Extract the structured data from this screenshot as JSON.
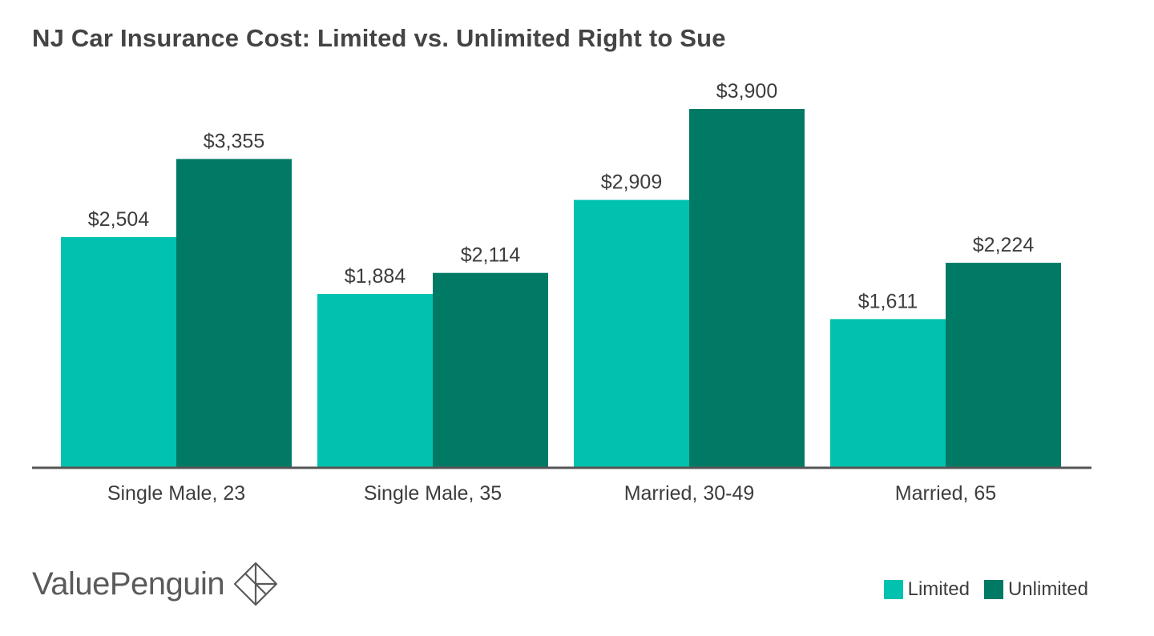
{
  "chart_data": {
    "type": "bar",
    "title": "NJ Car Insurance Cost: Limited vs. Unlimited Right to Sue",
    "xlabel": "",
    "ylabel": "",
    "categories": [
      "Single Male, 23",
      "Single Male, 35",
      "Married, 30-49",
      "Married, 65"
    ],
    "series": [
      {
        "name": "Limited",
        "color": "#00c2ae",
        "values": [
          2504,
          1884,
          2909,
          1611
        ],
        "labels": [
          "$2,504",
          "$1,884",
          "$2,909",
          "$1,611"
        ]
      },
      {
        "name": "Unlimited",
        "color": "#007a65",
        "values": [
          3355,
          2114,
          3900,
          2224
        ],
        "labels": [
          "$3,355",
          "$2,114",
          "$3,900",
          "$2,224"
        ]
      }
    ],
    "ylim": [
      0,
      3900
    ],
    "grid": false,
    "legend": "bottom-right"
  },
  "brand": {
    "name": "ValuePenguin",
    "icon": "valuepenguin-logo-icon"
  },
  "colors": {
    "axis": "#555555",
    "text": "#3d3d3d"
  }
}
